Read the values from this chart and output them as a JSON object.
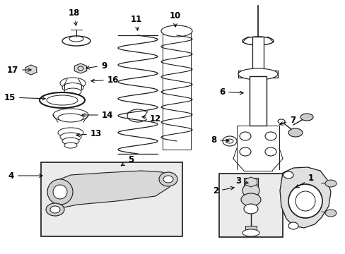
{
  "bg_color": "#ffffff",
  "line_color": "#1a1a1a",
  "fig_width": 4.89,
  "fig_height": 3.6,
  "dpi": 100,
  "labels": [
    [
      "18",
      105,
      18,
      108,
      40
    ],
    [
      "17",
      18,
      99,
      48,
      99
    ],
    [
      "9",
      147,
      93,
      118,
      97
    ],
    [
      "16",
      160,
      113,
      125,
      115
    ],
    [
      "15",
      14,
      138,
      68,
      140
    ],
    [
      "14",
      152,
      163,
      112,
      163
    ],
    [
      "13",
      136,
      189,
      104,
      192
    ],
    [
      "11",
      193,
      27,
      195,
      47
    ],
    [
      "10",
      248,
      22,
      248,
      42
    ],
    [
      "12",
      220,
      168,
      197,
      165
    ],
    [
      "6",
      314,
      130,
      348,
      132
    ],
    [
      "7",
      414,
      170,
      392,
      178
    ],
    [
      "8",
      302,
      198,
      328,
      200
    ],
    [
      "4",
      16,
      249,
      64,
      249
    ],
    [
      "5",
      185,
      226,
      168,
      237
    ],
    [
      "2",
      305,
      271,
      335,
      265
    ],
    [
      "3",
      337,
      257,
      355,
      260
    ],
    [
      "1",
      440,
      253,
      415,
      268
    ]
  ]
}
